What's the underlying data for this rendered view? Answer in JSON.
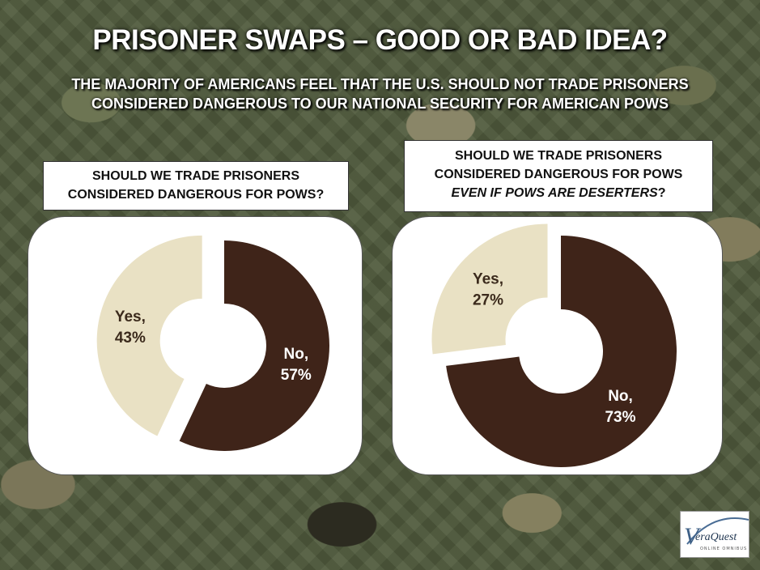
{
  "title": "PRISONER SWAPS – GOOD OR BAD IDEA?",
  "subtitle_line1": "THE MAJORITY OF AMERICANS FEEL THAT THE U.S. SHOULD NOT TRADE PRISONERS",
  "subtitle_line2": "CONSIDERED DANGEROUS TO OUR NATIONAL SECURITY  FOR AMERICAN POWS",
  "left_question": {
    "line1": "SHOULD WE TRADE PRISONERS",
    "line2": "CONSIDERED DANGEROUS FOR POWS?"
  },
  "right_question": {
    "line1": "SHOULD WE TRADE PRISONERS",
    "line2": "CONSIDERED DANGEROUS FOR POWS",
    "line3_italic": "EVEN IF POWS ARE DESERTERS",
    "line3_suffix": "?"
  },
  "logo": {
    "initial": "V",
    "name": "eraQuest",
    "tagline": "ONLINE OMNIBUS"
  },
  "colors": {
    "no": "#3f2419",
    "yes": "#e9e1c4"
  },
  "chart_data": [
    {
      "type": "pie",
      "subtype": "donut",
      "title": "SHOULD WE TRADE PRISONERS CONSIDERED DANGEROUS FOR POWS?",
      "categories": [
        "No",
        "Yes"
      ],
      "values": [
        57,
        43
      ],
      "labels": [
        {
          "line1": "No,",
          "line2": "57%"
        },
        {
          "line1": "Yes,",
          "line2": "43%"
        }
      ],
      "exploded": "Yes",
      "legend": "none"
    },
    {
      "type": "pie",
      "subtype": "donut",
      "title": "SHOULD WE TRADE PRISONERS CONSIDERED DANGEROUS FOR POWS EVEN IF POWS ARE DESERTERS?",
      "categories": [
        "No",
        "Yes"
      ],
      "values": [
        73,
        27
      ],
      "labels": [
        {
          "line1": "No,",
          "line2": "73%"
        },
        {
          "line1": "Yes,",
          "line2": "27%"
        }
      ],
      "exploded": "Yes",
      "legend": "none"
    }
  ]
}
